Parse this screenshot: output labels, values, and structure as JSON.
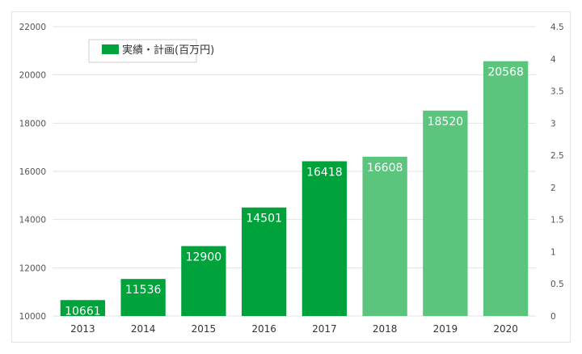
{
  "chart_data": {
    "type": "bar",
    "categories": [
      "2013",
      "2014",
      "2015",
      "2016",
      "2017",
      "2018",
      "2019",
      "2020"
    ],
    "values": [
      10661,
      11536,
      12900,
      14501,
      16418,
      16608,
      18520,
      20568
    ],
    "value_labels": [
      "10661",
      "11536",
      "12900",
      "14501",
      "16418",
      "16608",
      "18520",
      "20568"
    ],
    "bar_kind": [
      "actual",
      "actual",
      "actual",
      "actual",
      "actual",
      "plan",
      "plan",
      "plan"
    ],
    "legend": [
      "実績・計画(百万円)"
    ],
    "legend_position": "top-left",
    "ylim": [
      10000,
      22000
    ],
    "yticks": [
      10000,
      12000,
      14000,
      16000,
      18000,
      20000,
      22000
    ],
    "ytick_labels": [
      "10000",
      "12000",
      "14000",
      "16000",
      "18000",
      "20000",
      "22000"
    ],
    "y2lim": [
      0,
      4.5
    ],
    "y2ticks": [
      0,
      0.5,
      1,
      1.5,
      2,
      2.5,
      3,
      3.5,
      4,
      4.5
    ],
    "y2tick_labels": [
      "0",
      "0.5",
      "1",
      "1.5",
      "2",
      "2.5",
      "3",
      "3.5",
      "4",
      "4.5"
    ],
    "grid": true,
    "colors": {
      "actual": "#00a23b",
      "plan": "#5bc57e",
      "grid": "#e3e3e3"
    }
  }
}
